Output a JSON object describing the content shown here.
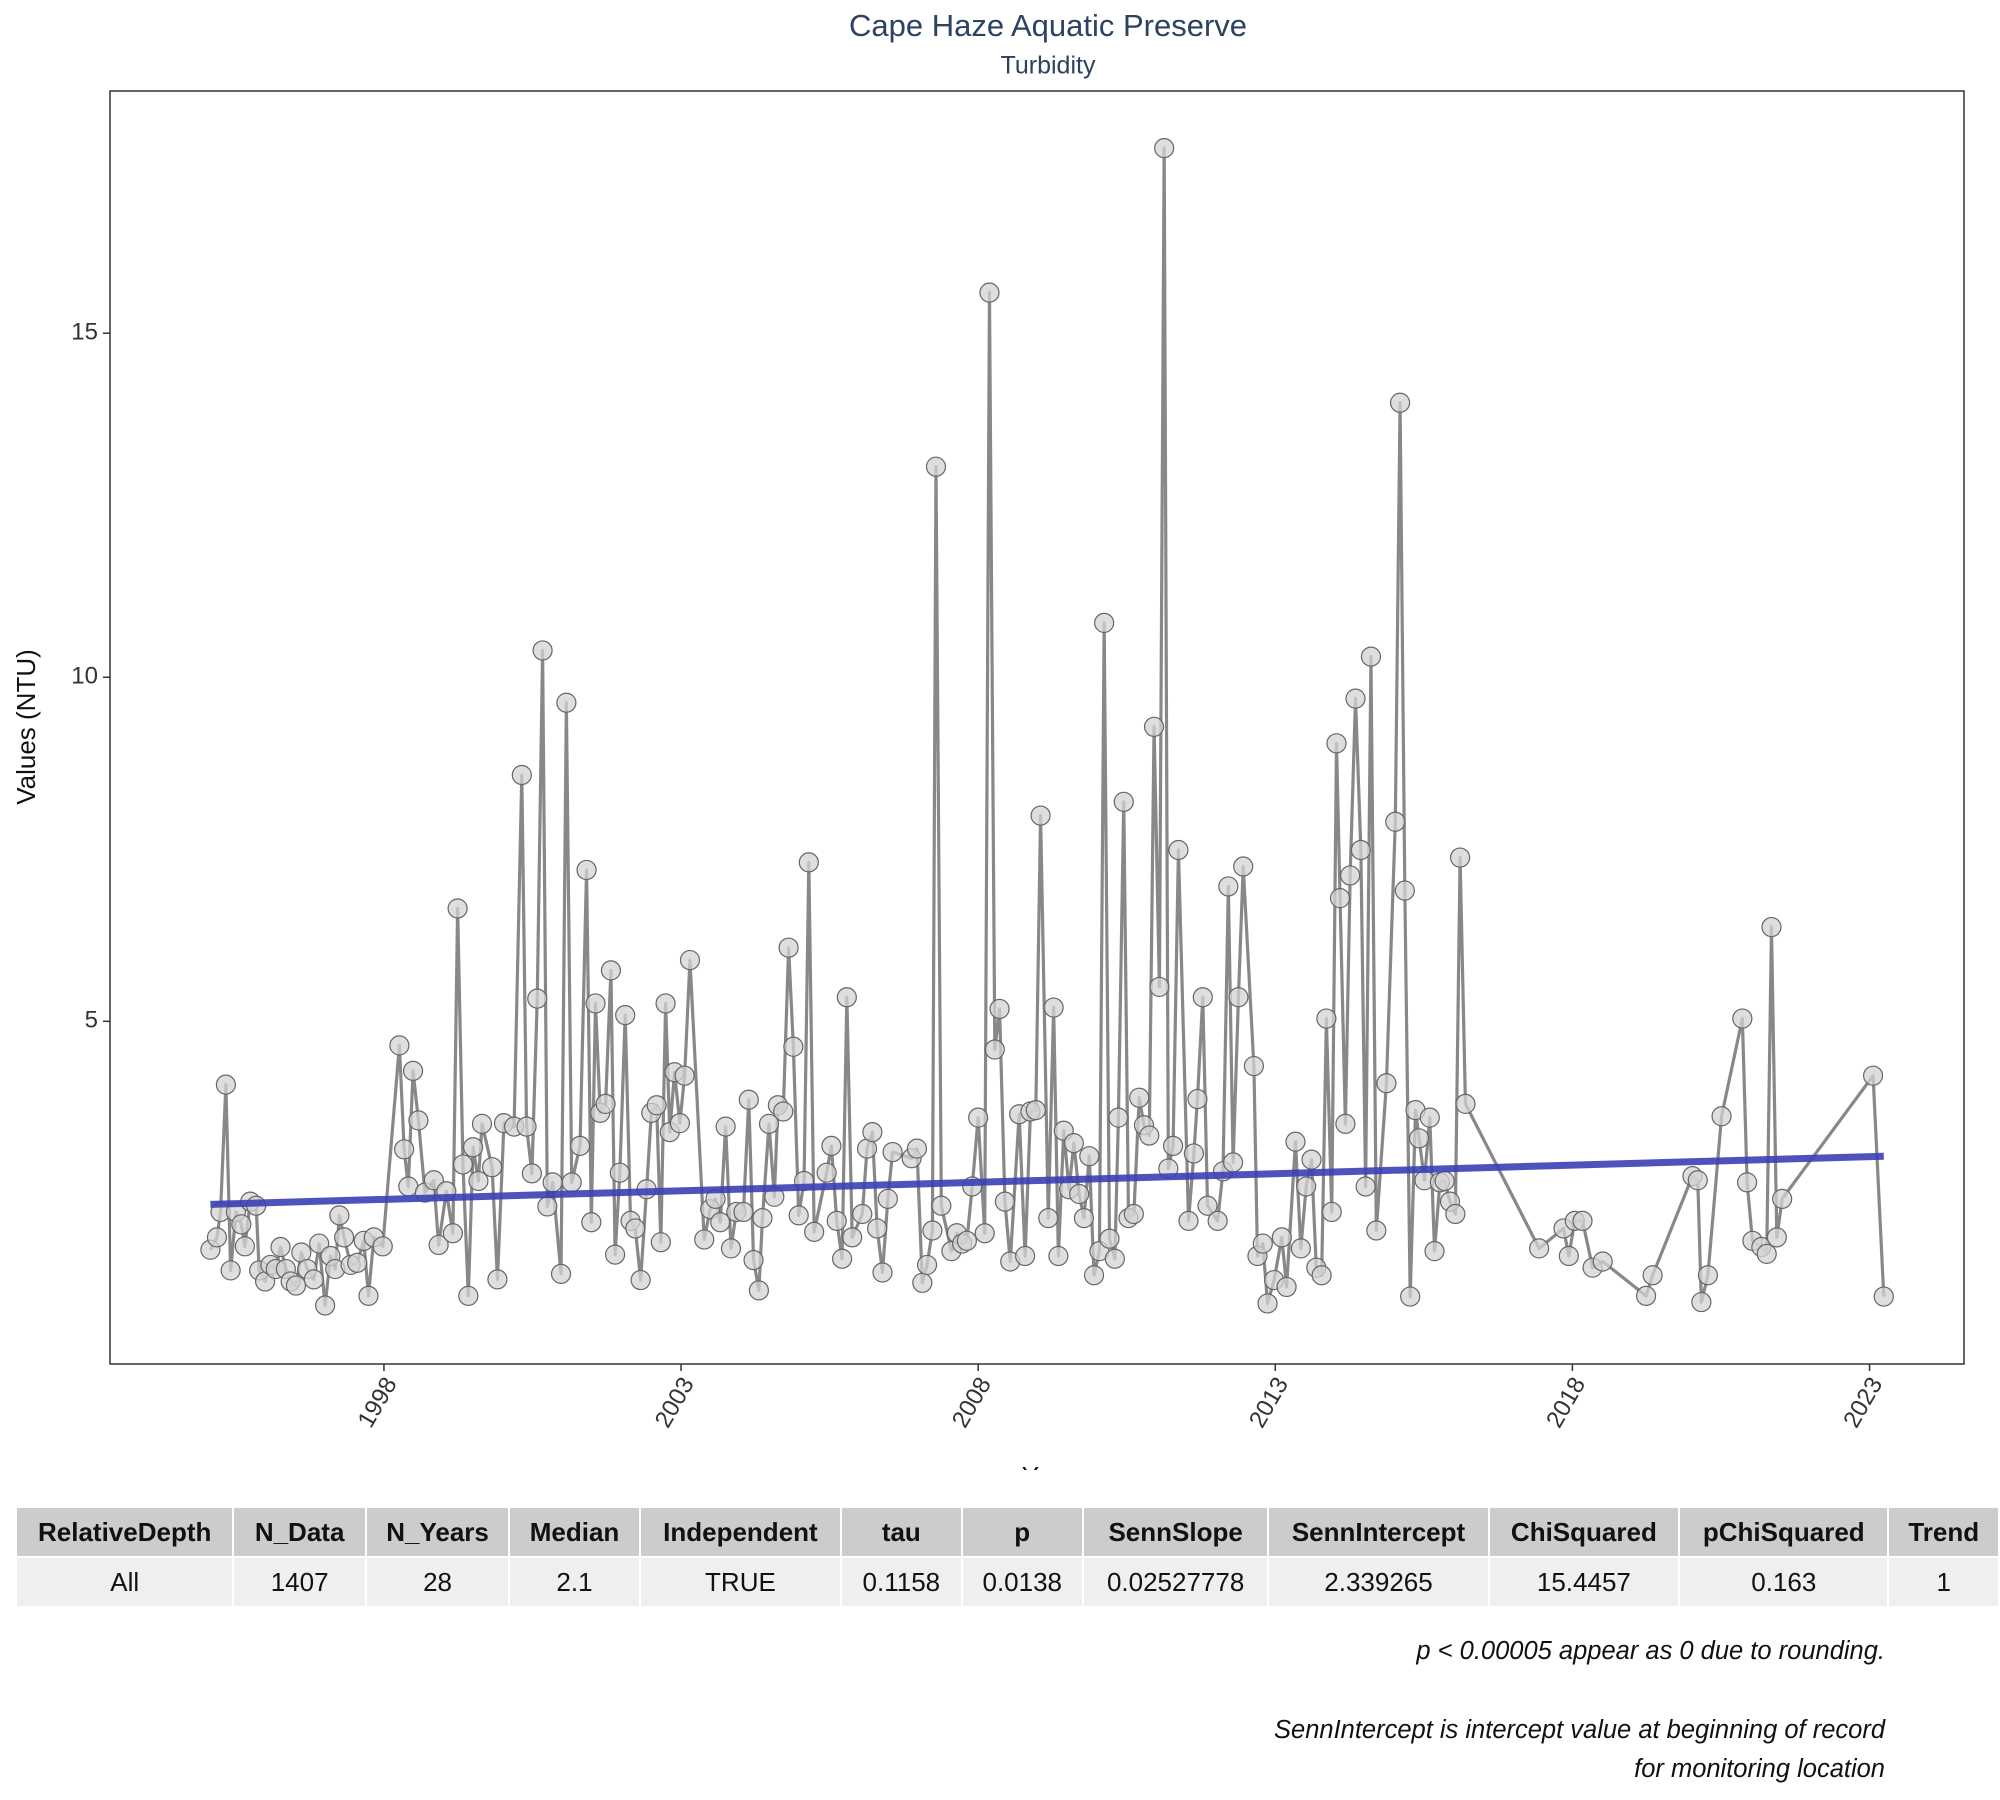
{
  "chart_data": {
    "type": "line",
    "title": "Cape Haze Aquatic Preserve",
    "subtitle": "Turbidity",
    "xlabel": "Year",
    "ylabel": "Values (NTU)",
    "xlim": [
      1993.39,
      2024.59
    ],
    "ylim": [
      0.02,
      18.52
    ],
    "xticks": [
      1998,
      2003,
      2008,
      2013,
      2018,
      2023
    ],
    "yticks": [
      5,
      10,
      15
    ],
    "color": "#888888",
    "marker_color": "#d3d3d3",
    "x": [
      1995.08,
      1995.19,
      1995.25,
      1995.34,
      1995.42,
      1995.51,
      1995.6,
      1995.66,
      1995.75,
      1995.85,
      1995.9,
      1996.0,
      1996.09,
      1996.18,
      1996.26,
      1996.35,
      1996.43,
      1996.52,
      1996.61,
      1996.71,
      1996.82,
      1996.91,
      1997.01,
      1997.1,
      1997.18,
      1997.25,
      1997.33,
      1997.44,
      1997.55,
      1997.66,
      1997.74,
      1997.83,
      1997.98,
      1998.26,
      1998.34,
      1998.41,
      1998.49,
      1998.58,
      1998.69,
      1998.84,
      1998.92,
      1999.05,
      1999.16,
      1999.24,
      1999.33,
      1999.42,
      1999.5,
      1999.59,
      1999.65,
      1999.82,
      1999.91,
      2000.02,
      2000.19,
      2000.32,
      2000.4,
      2000.49,
      2000.58,
      2000.67,
      2000.75,
      2000.84,
      2000.98,
      2001.07,
      2001.16,
      2001.3,
      2001.41,
      2001.49,
      2001.56,
      2001.64,
      2001.73,
      2001.82,
      2001.89,
      2001.97,
      2002.06,
      2002.15,
      2002.23,
      2002.32,
      2002.42,
      2002.5,
      2002.59,
      2002.66,
      2002.74,
      2002.81,
      2002.89,
      2002.98,
      2003.06,
      2003.15,
      2003.39,
      2003.49,
      2003.58,
      2003.66,
      2003.75,
      2003.84,
      2003.93,
      2004.05,
      2004.14,
      2004.22,
      2004.31,
      2004.37,
      2004.48,
      2004.57,
      2004.63,
      2004.72,
      2004.81,
      2004.89,
      2004.98,
      2005.07,
      2005.15,
      2005.24,
      2005.45,
      2005.53,
      2005.62,
      2005.71,
      2005.79,
      2005.88,
      2006.05,
      2006.13,
      2006.22,
      2006.3,
      2006.39,
      2006.48,
      2006.56,
      2006.88,
      2006.97,
      2007.06,
      2007.14,
      2007.23,
      2007.29,
      2007.38,
      2007.55,
      2007.64,
      2007.73,
      2007.81,
      2007.9,
      2008.0,
      2008.11,
      2008.19,
      2008.28,
      2008.36,
      2008.45,
      2008.54,
      2008.69,
      2008.79,
      2008.88,
      2008.97,
      2009.05,
      2009.18,
      2009.27,
      2009.35,
      2009.44,
      2009.53,
      2009.61,
      2009.7,
      2009.78,
      2009.87,
      2009.95,
      2010.04,
      2010.12,
      2010.21,
      2010.3,
      2010.36,
      2010.45,
      2010.53,
      2010.62,
      2010.71,
      2010.79,
      2010.88,
      2010.96,
      2011.05,
      2011.13,
      2011.2,
      2011.28,
      2011.37,
      2011.54,
      2011.63,
      2011.69,
      2011.78,
      2011.86,
      2012.03,
      2012.12,
      2012.21,
      2012.29,
      2012.38,
      2012.46,
      2012.64,
      2012.7,
      2012.79,
      2012.87,
      2012.98,
      2013.11,
      2013.19,
      2013.34,
      2013.43,
      2013.52,
      2013.61,
      2013.69,
      2013.78,
      2013.86,
      2013.95,
      2014.03,
      2014.09,
      2014.18,
      2014.26,
      2014.35,
      2014.44,
      2014.52,
      2014.61,
      2014.7,
      2014.87,
      2015.02,
      2015.1,
      2015.18,
      2015.27,
      2015.36,
      2015.42,
      2015.51,
      2015.6,
      2015.68,
      2015.77,
      2015.85,
      2015.94,
      2016.03,
      2016.11,
      2016.2,
      2017.44,
      2017.85,
      2017.94,
      2018.04,
      2018.17,
      2018.34,
      2018.51,
      2019.24,
      2019.35,
      2020.02,
      2020.11,
      2020.17,
      2020.28,
      2020.51,
      2020.86,
      2020.94,
      2021.03,
      2021.18,
      2021.27,
      2021.35,
      2021.44,
      2021.53,
      2023.06,
      2023.24
    ],
    "values": [
      1.68,
      1.86,
      2.23,
      4.08,
      1.38,
      2.23,
      2.05,
      1.73,
      2.38,
      2.32,
      1.38,
      1.22,
      1.46,
      1.4,
      1.72,
      1.4,
      1.22,
      1.16,
      1.64,
      1.4,
      1.25,
      1.77,
      0.87,
      1.59,
      1.4,
      2.18,
      1.86,
      1.46,
      1.49,
      1.81,
      1.01,
      1.86,
      1.73,
      4.65,
      3.14,
      2.6,
      4.28,
      3.56,
      2.51,
      2.69,
      1.75,
      2.53,
      1.92,
      6.64,
      2.92,
      1.01,
      3.17,
      2.68,
      3.51,
      2.88,
      1.25,
      3.52,
      3.47,
      8.58,
      3.47,
      2.79,
      5.33,
      10.39,
      2.31,
      2.66,
      1.33,
      9.63,
      2.66,
      3.19,
      7.2,
      2.08,
      5.26,
      3.67,
      3.8,
      5.74,
      1.61,
      2.8,
      5.09,
      2.1,
      1.99,
      1.24,
      2.56,
      3.67,
      3.78,
      1.79,
      5.26,
      3.39,
      4.26,
      3.52,
      4.21,
      5.89,
      1.83,
      2.27,
      2.42,
      2.08,
      3.47,
      1.7,
      2.23,
      2.23,
      3.86,
      1.53,
      1.09,
      2.14,
      3.51,
      2.45,
      3.78,
      3.69,
      6.07,
      4.63,
      2.18,
      2.68,
      7.31,
      1.94,
      2.8,
      3.19,
      2.1,
      1.55,
      5.35,
      1.86,
      2.2,
      3.15,
      3.39,
      1.99,
      1.35,
      2.42,
      3.1,
      3.01,
      3.15,
      1.2,
      1.46,
      1.96,
      13.06,
      2.32,
      1.66,
      1.92,
      1.77,
      1.81,
      2.6,
      3.6,
      1.92,
      15.59,
      4.59,
      5.18,
      2.38,
      1.51,
      3.65,
      1.59,
      3.69,
      3.71,
      7.99,
      2.14,
      5.2,
      1.59,
      3.41,
      2.56,
      3.23,
      2.49,
      2.14,
      3.04,
      1.31,
      1.66,
      10.79,
      1.84,
      1.55,
      3.6,
      8.19,
      2.14,
      2.2,
      3.89,
      3.49,
      3.34,
      9.28,
      5.5,
      17.69,
      2.86,
      3.19,
      7.49,
      2.1,
      3.08,
      3.87,
      5.35,
      2.32,
      2.1,
      2.82,
      6.96,
      2.95,
      5.35,
      7.25,
      4.35,
      1.59,
      1.77,
      0.9,
      1.24,
      1.86,
      1.14,
      3.25,
      1.7,
      2.6,
      2.99,
      1.42,
      1.31,
      5.04,
      2.23,
      9.04,
      6.79,
      3.51,
      7.12,
      9.69,
      7.49,
      2.6,
      10.3,
      1.96,
      4.1,
      7.9,
      13.99,
      6.9,
      1.0,
      3.71,
      3.3,
      2.69,
      3.6,
      1.66,
      2.66,
      2.68,
      2.38,
      2.2,
      7.38,
      3.8,
      1.7,
      1.99,
      1.59,
      2.1,
      2.1,
      1.42,
      1.51,
      1.01,
      1.31,
      2.75,
      2.69,
      0.92,
      1.31,
      3.62,
      5.04,
      2.66,
      1.81,
      1.72,
      1.62,
      6.37,
      1.86,
      2.42,
      4.21,
      1.0
    ],
    "trend": {
      "x": [
        1995.08,
        2023.24
      ],
      "values": [
        2.34,
        3.04
      ],
      "color": "#3b3fb5"
    }
  },
  "table": {
    "columns": [
      "RelativeDepth",
      "N_Data",
      "N_Years",
      "Median",
      "Independent",
      "tau",
      "p",
      "SennSlope",
      "SennIntercept",
      "ChiSquared",
      "pChiSquared",
      "Trend"
    ],
    "rows": [
      [
        "All",
        "1407",
        "28",
        "2.1",
        "TRUE",
        "0.1158",
        "0.0138",
        "0.02527778",
        "2.339265",
        "15.4457",
        "0.163",
        "1"
      ]
    ]
  },
  "notes": [
    "p < 0.00005 appear as 0 due to rounding.",
    "SennIntercept is intercept value at beginning of record for monitoring location"
  ]
}
